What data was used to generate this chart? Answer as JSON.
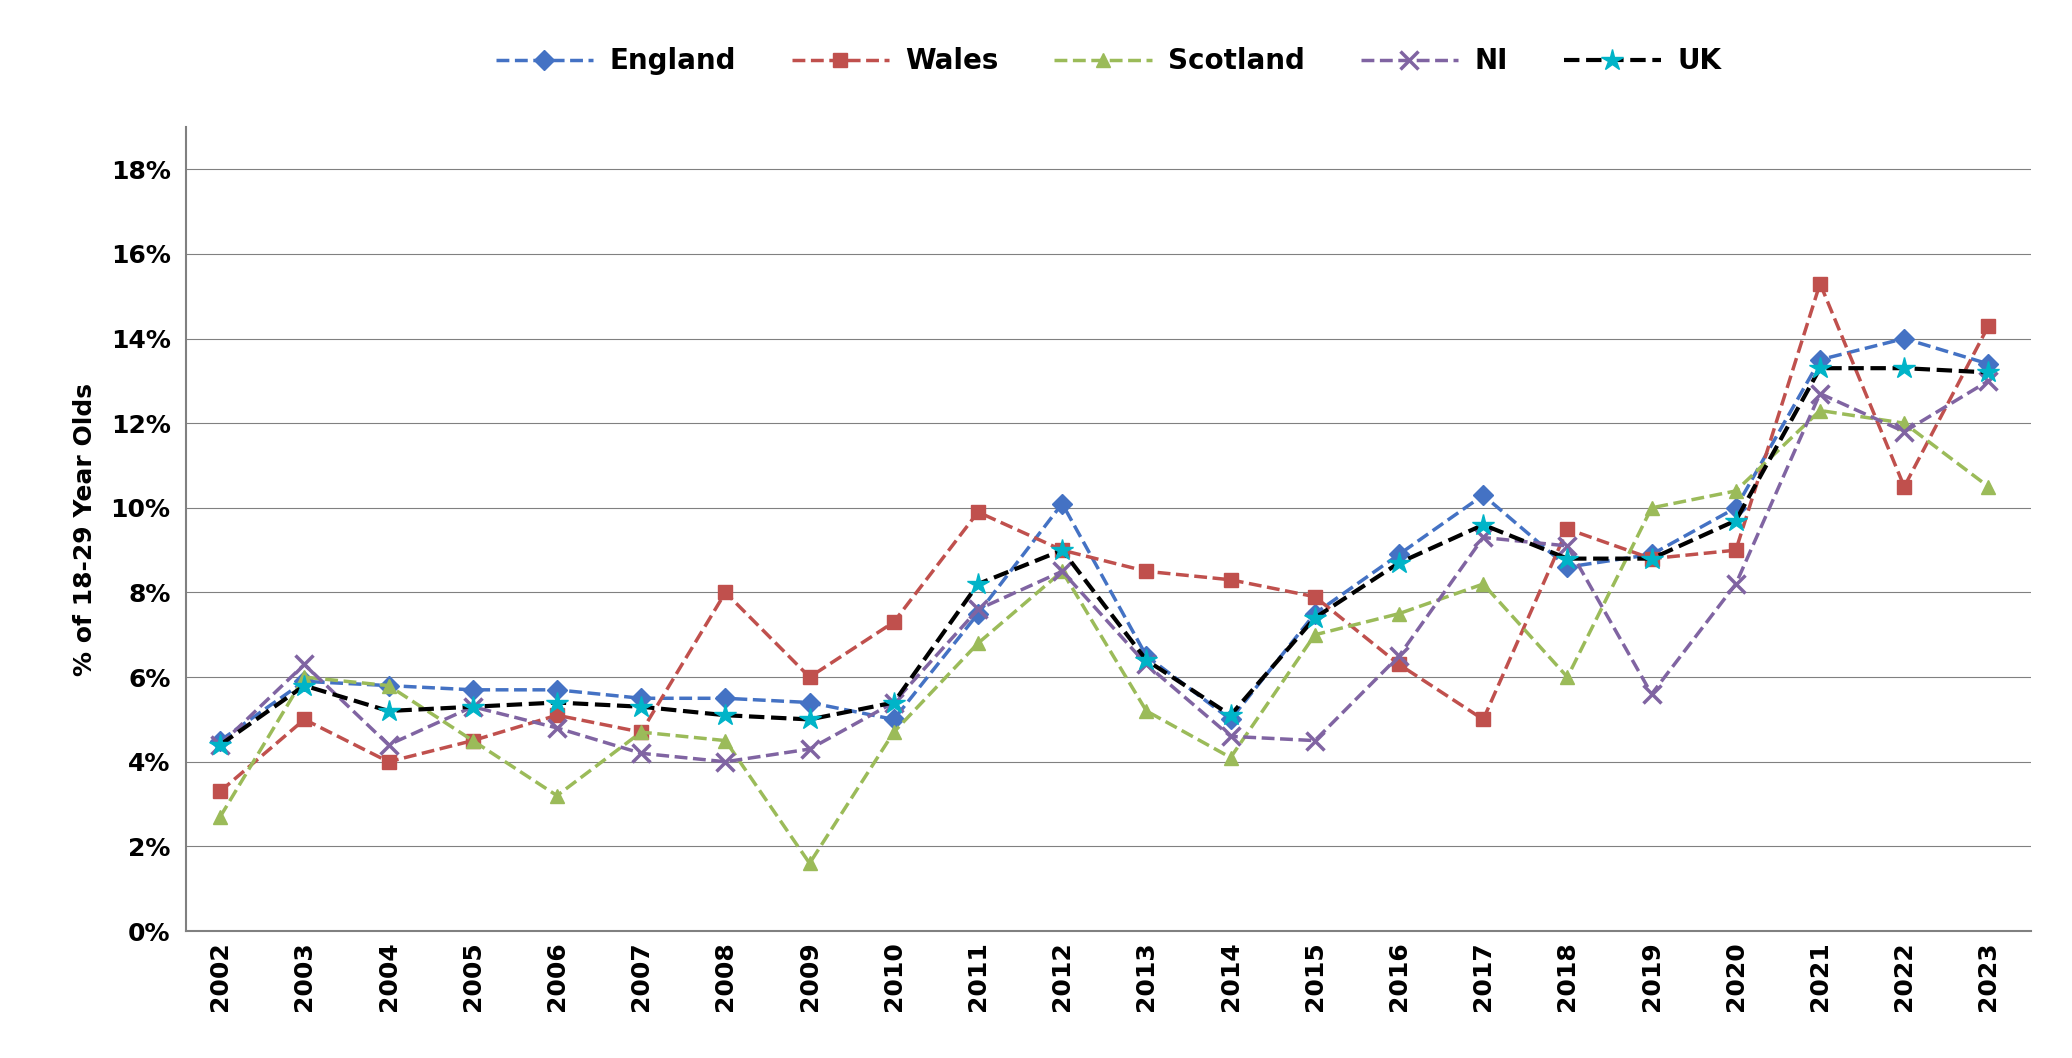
{
  "years": [
    2002,
    2003,
    2004,
    2005,
    2006,
    2007,
    2008,
    2009,
    2010,
    2011,
    2012,
    2013,
    2014,
    2015,
    2016,
    2017,
    2018,
    2019,
    2020,
    2021,
    2022,
    2023
  ],
  "england": [
    0.045,
    0.059,
    0.058,
    0.057,
    0.057,
    0.055,
    0.055,
    0.054,
    0.05,
    0.075,
    0.101,
    0.065,
    0.05,
    0.075,
    0.089,
    0.103,
    0.086,
    0.089,
    0.1,
    0.135,
    0.14,
    0.134
  ],
  "wales": [
    0.033,
    0.05,
    0.04,
    0.045,
    0.051,
    0.047,
    0.08,
    0.06,
    0.073,
    0.099,
    0.09,
    0.085,
    0.083,
    0.079,
    0.063,
    0.05,
    0.095,
    0.088,
    0.09,
    0.153,
    0.105,
    0.143
  ],
  "scotland": [
    0.027,
    0.06,
    0.058,
    0.045,
    0.032,
    0.047,
    0.045,
    0.016,
    0.047,
    0.068,
    0.085,
    0.052,
    0.041,
    0.07,
    0.075,
    0.082,
    0.06,
    0.1,
    0.104,
    0.123,
    0.12,
    0.105
  ],
  "ni": [
    0.044,
    0.063,
    0.044,
    0.053,
    0.048,
    0.042,
    0.04,
    0.043,
    0.054,
    0.076,
    0.085,
    0.063,
    0.046,
    0.045,
    0.065,
    0.093,
    0.091,
    0.056,
    0.082,
    0.127,
    0.118,
    0.13
  ],
  "uk": [
    0.044,
    0.058,
    0.052,
    0.053,
    0.054,
    0.053,
    0.051,
    0.05,
    0.054,
    0.082,
    0.09,
    0.064,
    0.051,
    0.074,
    0.087,
    0.096,
    0.088,
    0.088,
    0.097,
    0.133,
    0.133,
    0.132
  ],
  "england_color": "#4472C4",
  "wales_color": "#C0504D",
  "scotland_color": "#9BBB59",
  "ni_color": "#8064A2",
  "uk_color": "#000000",
  "uk_marker_color": "#00B4C8",
  "ylabel": "% of 18-29 Year Olds",
  "ylim": [
    0.0,
    0.19
  ],
  "yticks": [
    0.0,
    0.02,
    0.04,
    0.06,
    0.08,
    0.1,
    0.12,
    0.14,
    0.16,
    0.18
  ],
  "background_color": "#ffffff",
  "grid_color": "#808080",
  "spine_color": "#808080"
}
